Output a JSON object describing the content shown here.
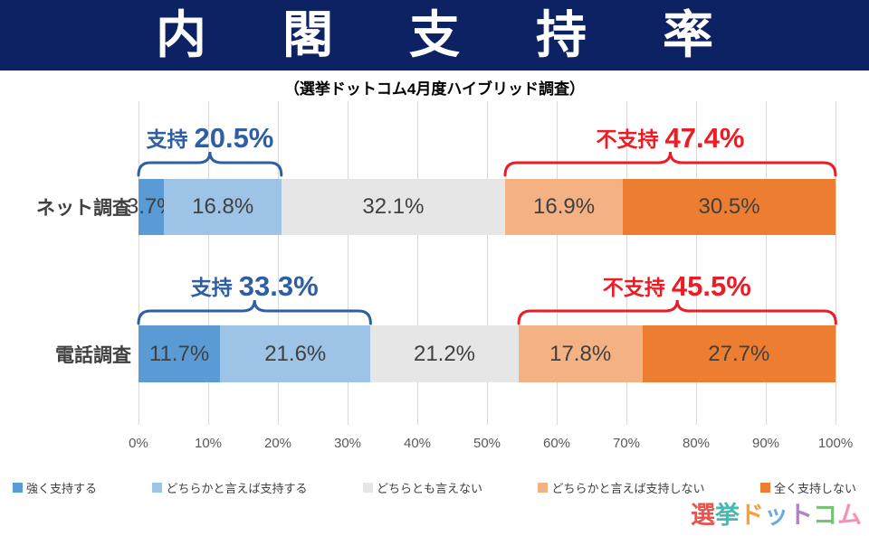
{
  "header": {
    "title": "内閣支持率",
    "subtitle": "（選挙ドットコム4月度ハイブリッド調査）",
    "bg_color": "#0d2263",
    "title_color": "#ffffff"
  },
  "chart_data": {
    "type": "bar",
    "orientation": "horizontal-stacked",
    "title": "内閣支持率",
    "subtitle": "選挙ドットコム4月度ハイブリッド調査",
    "categories": [
      "ネット調査",
      "電話調査"
    ],
    "series": [
      {
        "name": "強く支持する",
        "color": "#5b9bd5",
        "values": [
          3.7,
          11.7
        ]
      },
      {
        "name": "どちらかと言えば支持する",
        "color": "#9dc3e6",
        "values": [
          16.8,
          21.6
        ]
      },
      {
        "name": "どちらとも言えない",
        "color": "#e7e6e6",
        "values": [
          32.1,
          21.2
        ]
      },
      {
        "name": "どちらかと言えば支持しない",
        "color": "#f4b183",
        "values": [
          16.9,
          17.8
        ]
      },
      {
        "name": "全く支持しない",
        "color": "#ed7d31",
        "values": [
          30.5,
          27.7
        ]
      }
    ],
    "value_suffix": "%",
    "bar_label_color": "#404040",
    "xlim": [
      0,
      100
    ],
    "x_ticks": [
      "0%",
      "10%",
      "20%",
      "30%",
      "40%",
      "50%",
      "60%",
      "70%",
      "80%",
      "90%",
      "100%"
    ],
    "grid": true,
    "gridline_color": "#d9d9d9",
    "legend_position": "bottom",
    "annotations": [
      {
        "category": "ネット調査",
        "label": "支持",
        "value": "20.5%",
        "color": "#2e5fa3",
        "span": [
          0,
          20.5
        ]
      },
      {
        "category": "ネット調査",
        "label": "不支持",
        "value": "47.4%",
        "color": "#ed1c24",
        "span": [
          52.6,
          100
        ]
      },
      {
        "category": "電話調査",
        "label": "支持",
        "value": "33.3%",
        "color": "#2e5fa3",
        "span": [
          0,
          33.3
        ]
      },
      {
        "category": "電話調査",
        "label": "不支持",
        "value": "45.5%",
        "color": "#ed1c24",
        "span": [
          54.5,
          100
        ]
      }
    ]
  },
  "logo": {
    "text": "選挙ドットコム",
    "chars": [
      {
        "ch": "選",
        "color": "#e8544f"
      },
      {
        "ch": "挙",
        "color": "#45b8b0"
      },
      {
        "ch": "ド",
        "color": "#f7a13c"
      },
      {
        "ch": "ッ",
        "color": "#6cacdf"
      },
      {
        "ch": "ト",
        "color": "#b083c4"
      },
      {
        "ch": "コ",
        "color": "#77c376"
      },
      {
        "ch": "ム",
        "color": "#f590ba"
      }
    ]
  }
}
